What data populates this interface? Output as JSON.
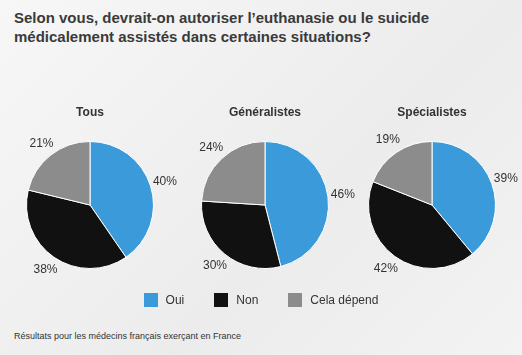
{
  "title": "Selon vous, devrait-on autoriser l’euthanasie ou le suicide médicalement assistés dans certaines situations?",
  "note": "Résultats pour les médecins français exerçant en France",
  "legend": "bottom",
  "chart_data": [
    {
      "type": "pie",
      "title": "Tous",
      "categories": [
        "Oui",
        "Non",
        "Cela dépend"
      ],
      "values": [
        40,
        38,
        21
      ],
      "value_labels": [
        "40%",
        "38%",
        "21%"
      ],
      "colors": [
        "#3b9ad9",
        "#111111",
        "#8c8c8c"
      ],
      "data_labels": true
    },
    {
      "type": "pie",
      "title": "Généralistes",
      "categories": [
        "Oui",
        "Non",
        "Cela dépend"
      ],
      "values": [
        46,
        30,
        24
      ],
      "value_labels": [
        "46%",
        "30%",
        "24%"
      ],
      "colors": [
        "#3b9ad9",
        "#111111",
        "#8c8c8c"
      ],
      "data_labels": true
    },
    {
      "type": "pie",
      "title": "Spécialistes",
      "categories": [
        "Oui",
        "Non",
        "Cela dépend"
      ],
      "values": [
        39,
        42,
        19
      ],
      "value_labels": [
        "39%",
        "42%",
        "19%"
      ],
      "colors": [
        "#3b9ad9",
        "#111111",
        "#8c8c8c"
      ],
      "data_labels": true
    }
  ]
}
